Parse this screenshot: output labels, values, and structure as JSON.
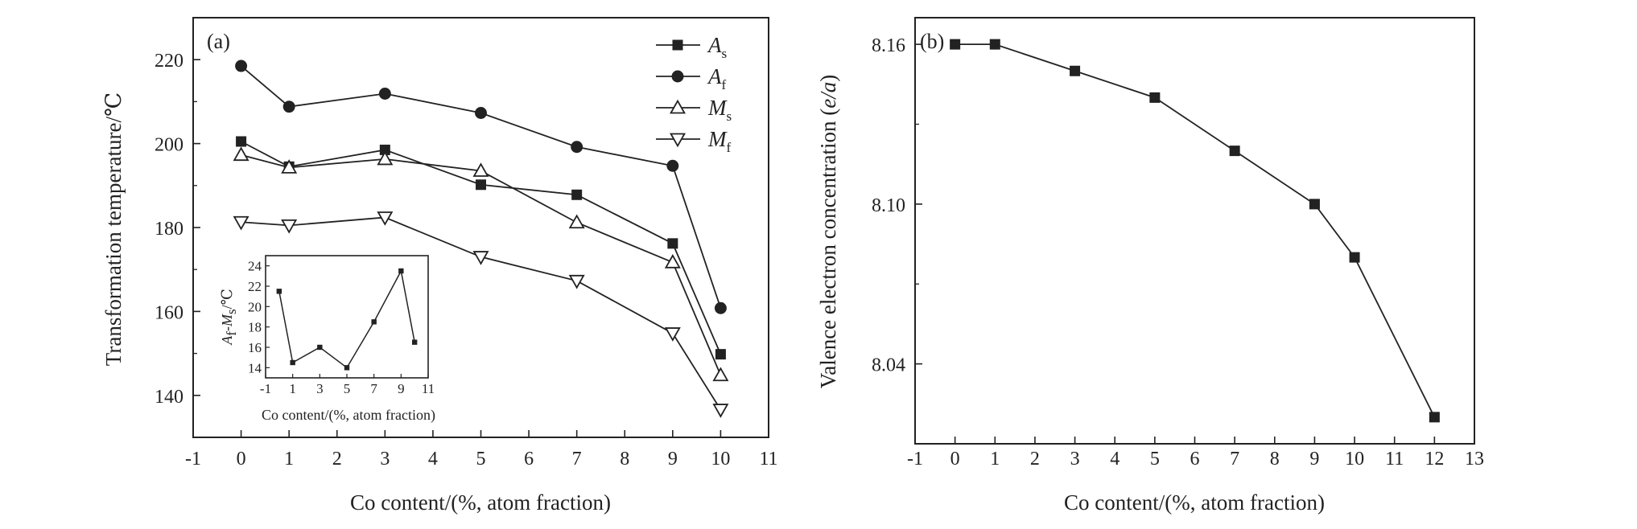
{
  "colors": {
    "ink": "#222222",
    "background": "#ffffff"
  },
  "chart_data": [
    {
      "type": "line",
      "panel_label": "(a)",
      "xlabel": "Co content/(%, atom fraction)",
      "ylabel": "Transformation temperature/℃",
      "xlim": [
        -1,
        11
      ],
      "ylim": [
        130,
        230
      ],
      "xticks": [
        "-1",
        "0",
        "1",
        "2",
        "3",
        "4",
        "5",
        "6",
        "7",
        "8",
        "9",
        "10",
        "11"
      ],
      "yticks": [
        "140",
        "160",
        "180",
        "200",
        "220"
      ],
      "legend_position": "top-right",
      "series": [
        {
          "name": "A",
          "sub": "s",
          "marker": "square",
          "x": [
            0,
            1,
            3,
            5,
            7,
            9,
            10
          ],
          "values": [
            200.5,
            194.5,
            198.5,
            190.2,
            187.8,
            176.2,
            149.8
          ]
        },
        {
          "name": "A",
          "sub": "f",
          "marker": "circle",
          "x": [
            0,
            1,
            3,
            5,
            7,
            9,
            10
          ],
          "values": [
            218.5,
            208.8,
            211.9,
            207.3,
            199.2,
            194.7,
            160.8
          ]
        },
        {
          "name": "M",
          "sub": "s",
          "marker": "triangle-up",
          "x": [
            0,
            1,
            3,
            5,
            7,
            9,
            10
          ],
          "values": [
            197.3,
            194.3,
            196.3,
            193.5,
            181.2,
            171.7,
            144.8
          ]
        },
        {
          "name": "M",
          "sub": "f",
          "marker": "triangle-down",
          "x": [
            0,
            1,
            3,
            5,
            7,
            9,
            10
          ],
          "values": [
            181.3,
            180.5,
            182.4,
            173.0,
            167.3,
            154.8,
            136.6
          ]
        }
      ],
      "inset": {
        "type": "line",
        "ylabel_main": "A",
        "ylabel_sub1": "f",
        "ylabel_mid": "-M",
        "ylabel_sub2": "s",
        "ylabel_end": "/℃",
        "xlabel": "Co content/(%, atom fraction)",
        "xlim": [
          -1,
          11
        ],
        "ylim": [
          13,
          25
        ],
        "xticks": [
          "-1",
          "1",
          "3",
          "5",
          "7",
          "9",
          "11"
        ],
        "yticks": [
          "14",
          "16",
          "18",
          "20",
          "22",
          "24"
        ],
        "x": [
          0,
          1,
          3,
          5,
          7,
          9,
          10
        ],
        "values": [
          21.5,
          14.5,
          16.0,
          14.0,
          18.5,
          23.5,
          16.5
        ]
      }
    },
    {
      "type": "line",
      "panel_label": "(b)",
      "xlabel": "Co content/(%, atom fraction)",
      "ylabel": "Valence electron concentration (e/a)",
      "xlim": [
        -1,
        13
      ],
      "ylim": [
        8.01,
        8.17
      ],
      "xticks": [
        "-1",
        "0",
        "1",
        "2",
        "3",
        "4",
        "5",
        "6",
        "7",
        "8",
        "9",
        "10",
        "11",
        "12",
        "13"
      ],
      "yticks": [
        "8.04",
        "8.10",
        "8.16"
      ],
      "series": [
        {
          "marker": "square",
          "x": [
            0,
            1,
            3,
            5,
            7,
            9,
            10,
            12
          ],
          "values": [
            8.16,
            8.16,
            8.15,
            8.14,
            8.12,
            8.1,
            8.08,
            8.02
          ]
        }
      ]
    }
  ]
}
